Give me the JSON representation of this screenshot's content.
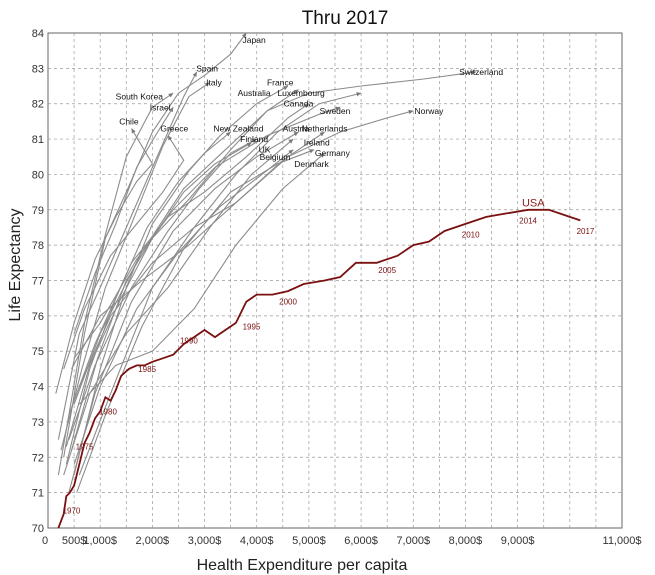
{
  "chart_data": {
    "type": "line",
    "title": "Thru 2017",
    "xlabel": "Health Expenditure per capita",
    "ylabel": "Life Expectancy",
    "xlim": [
      0,
      11000
    ],
    "ylim": [
      70,
      84
    ],
    "grid": true,
    "x_ticks": [
      {
        "value": 0,
        "label": "0"
      },
      {
        "value": 500,
        "label": "500$"
      },
      {
        "value": 1000,
        "label": "1,000$"
      },
      {
        "value": 2000,
        "label": "2,000$"
      },
      {
        "value": 3000,
        "label": "3,000$"
      },
      {
        "value": 4000,
        "label": "4,000$"
      },
      {
        "value": 5000,
        "label": "5,000$"
      },
      {
        "value": 6000,
        "label": "6,000$"
      },
      {
        "value": 7000,
        "label": "7,000$"
      },
      {
        "value": 8000,
        "label": "8,000$"
      },
      {
        "value": 9000,
        "label": "9,000$"
      },
      {
        "value": 11000,
        "label": "11,000$"
      }
    ],
    "y_ticks": [
      70,
      71,
      72,
      73,
      74,
      75,
      76,
      77,
      78,
      79,
      80,
      81,
      82,
      83,
      84
    ],
    "series": [
      {
        "name": "USA",
        "highlight": true,
        "color": "#7a1010",
        "points": [
          [
            200,
            70
          ],
          [
            300,
            70.4
          ],
          [
            350,
            70.9
          ],
          [
            420,
            71.0
          ],
          [
            500,
            71.2
          ],
          [
            600,
            71.8
          ],
          [
            700,
            72.4
          ],
          [
            800,
            72.7
          ],
          [
            900,
            73.1
          ],
          [
            1000,
            73.3
          ],
          [
            1100,
            73.7
          ],
          [
            1200,
            73.6
          ],
          [
            1300,
            73.9
          ],
          [
            1400,
            74.3
          ],
          [
            1550,
            74.5
          ],
          [
            1700,
            74.6
          ],
          [
            1850,
            74.6
          ],
          [
            2000,
            74.7
          ],
          [
            2200,
            74.8
          ],
          [
            2400,
            74.9
          ],
          [
            2600,
            75.2
          ],
          [
            2800,
            75.4
          ],
          [
            3000,
            75.6
          ],
          [
            3200,
            75.4
          ],
          [
            3400,
            75.6
          ],
          [
            3600,
            75.8
          ],
          [
            3800,
            76.4
          ],
          [
            4000,
            76.6
          ],
          [
            4300,
            76.6
          ],
          [
            4600,
            76.7
          ],
          [
            4900,
            76.9
          ],
          [
            5300,
            77.0
          ],
          [
            5600,
            77.1
          ],
          [
            5900,
            77.5
          ],
          [
            6300,
            77.5
          ],
          [
            6700,
            77.7
          ],
          [
            7000,
            78.0
          ],
          [
            7300,
            78.1
          ],
          [
            7600,
            78.4
          ],
          [
            8000,
            78.6
          ],
          [
            8400,
            78.8
          ],
          [
            8800,
            78.9
          ],
          [
            9200,
            79.0
          ],
          [
            9600,
            79.0
          ],
          [
            10000,
            78.8
          ],
          [
            10200,
            78.7
          ]
        ],
        "year_labels": [
          {
            "year": "1970",
            "x": 450,
            "y": 70.5
          },
          {
            "year": "1975",
            "x": 700,
            "y": 72.3
          },
          {
            "year": "1980",
            "x": 1150,
            "y": 73.3
          },
          {
            "year": "1985",
            "x": 1900,
            "y": 74.5
          },
          {
            "year": "1990",
            "x": 2700,
            "y": 75.3
          },
          {
            "year": "1995",
            "x": 3900,
            "y": 75.7
          },
          {
            "year": "2000",
            "x": 4600,
            "y": 76.4
          },
          {
            "year": "2005",
            "x": 6500,
            "y": 77.3
          },
          {
            "year": "2010",
            "x": 8100,
            "y": 78.3
          },
          {
            "year": "2014",
            "x": 9200,
            "y": 78.7
          },
          {
            "year": "2017",
            "x": 10300,
            "y": 78.4
          }
        ]
      },
      {
        "name": "Japan",
        "points": [
          [
            300,
            72
          ],
          [
            700,
            75.5
          ],
          [
            1100,
            78.2
          ],
          [
            1500,
            79.5
          ],
          [
            2000,
            81.2
          ],
          [
            2500,
            82.3
          ],
          [
            3000,
            82.8
          ],
          [
            3500,
            83.4
          ],
          [
            3800,
            84.0
          ]
        ],
        "label": {
          "x": 3950,
          "y": 83.8
        }
      },
      {
        "name": "Spain",
        "points": [
          [
            200,
            72.5
          ],
          [
            600,
            75.5
          ],
          [
            1000,
            76.8
          ],
          [
            1500,
            78.5
          ],
          [
            2000,
            80.2
          ],
          [
            2600,
            82.2
          ],
          [
            2850,
            82.9
          ]
        ],
        "label": {
          "x": 3050,
          "y": 83.0
        }
      },
      {
        "name": "Italy",
        "points": [
          [
            250,
            72.2
          ],
          [
            650,
            74.5
          ],
          [
            1100,
            76.8
          ],
          [
            1600,
            78.6
          ],
          [
            2200,
            80.8
          ],
          [
            2700,
            82.2
          ],
          [
            3100,
            82.6
          ]
        ],
        "label": {
          "x": 3180,
          "y": 82.6
        }
      },
      {
        "name": "South Korea",
        "points": [
          [
            200,
            71.5
          ],
          [
            400,
            73.2
          ],
          [
            700,
            75.8
          ],
          [
            1100,
            78.3
          ],
          [
            1500,
            80.5
          ],
          [
            2000,
            81.9
          ],
          [
            2400,
            82.3
          ]
        ],
        "label": {
          "x": 1750,
          "y": 82.2
        }
      },
      {
        "name": "Israel",
        "points": [
          [
            500,
            75.5
          ],
          [
            900,
            77.2
          ],
          [
            1300,
            78.6
          ],
          [
            1700,
            80.2
          ],
          [
            2100,
            81.2
          ],
          [
            2400,
            81.9
          ]
        ],
        "label": {
          "x": 2150,
          "y": 81.9
        }
      },
      {
        "name": "Chile",
        "points": [
          [
            150,
            73.8
          ],
          [
            500,
            75.8
          ],
          [
            900,
            77.6
          ],
          [
            1300,
            78.8
          ],
          [
            1700,
            79.8
          ],
          [
            2000,
            80.3
          ],
          [
            1600,
            81.3
          ]
        ],
        "label": {
          "x": 1550,
          "y": 81.5
        }
      },
      {
        "name": "Greece",
        "points": [
          [
            300,
            74.5
          ],
          [
            700,
            76.2
          ],
          [
            1200,
            77.7
          ],
          [
            1700,
            78.6
          ],
          [
            2200,
            79.5
          ],
          [
            2600,
            80.4
          ],
          [
            2300,
            81.1
          ]
        ],
        "label": {
          "x": 2420,
          "y": 81.3
        }
      },
      {
        "name": "Australia",
        "points": [
          [
            500,
            71.5
          ],
          [
            1000,
            74.5
          ],
          [
            1500,
            76.8
          ],
          [
            2000,
            78.6
          ],
          [
            2700,
            80.1
          ],
          [
            3300,
            81.1
          ],
          [
            4000,
            82.0
          ],
          [
            4600,
            82.5
          ]
        ],
        "label": {
          "x": 3950,
          "y": 82.3
        }
      },
      {
        "name": "France",
        "points": [
          [
            450,
            72.2
          ],
          [
            950,
            74.8
          ],
          [
            1500,
            77.0
          ],
          [
            2000,
            78.2
          ],
          [
            2700,
            79.3
          ],
          [
            3500,
            80.7
          ],
          [
            4200,
            81.8
          ],
          [
            4800,
            82.4
          ]
        ],
        "label": {
          "x": 4450,
          "y": 82.6
        }
      },
      {
        "name": "Luxembourg",
        "points": [
          [
            600,
            71.5
          ],
          [
            1200,
            73.8
          ],
          [
            2000,
            76.8
          ],
          [
            2800,
            78.5
          ],
          [
            3600,
            80.0
          ],
          [
            4400,
            81.2
          ],
          [
            5200,
            82.0
          ],
          [
            6000,
            82.3
          ]
        ],
        "label": {
          "x": 4850,
          "y": 82.3
        }
      },
      {
        "name": "Canada",
        "points": [
          [
            400,
            73.2
          ],
          [
            900,
            75.2
          ],
          [
            1600,
            77.5
          ],
          [
            2300,
            78.8
          ],
          [
            3000,
            79.5
          ],
          [
            3800,
            80.5
          ],
          [
            4600,
            81.6
          ],
          [
            5000,
            82.0
          ]
        ],
        "label": {
          "x": 4800,
          "y": 82.0
        }
      },
      {
        "name": "Sweden",
        "points": [
          [
            500,
            74.8
          ],
          [
            1000,
            75.8
          ],
          [
            1700,
            77.6
          ],
          [
            2400,
            79.0
          ],
          [
            3200,
            80.2
          ],
          [
            4200,
            81.1
          ],
          [
            5200,
            81.7
          ],
          [
            5600,
            81.9
          ]
        ],
        "label": {
          "x": 5500,
          "y": 81.8
        }
      },
      {
        "name": "Switzerland",
        "points": [
          [
            500,
            73.5
          ],
          [
            1000,
            75.5
          ],
          [
            1800,
            77.8
          ],
          [
            2600,
            79.6
          ],
          [
            3400,
            80.7
          ],
          [
            4200,
            81.8
          ],
          [
            5000,
            82.3
          ],
          [
            6000,
            82.5
          ],
          [
            7200,
            82.7
          ],
          [
            8200,
            82.9
          ]
        ],
        "label": {
          "x": 8300,
          "y": 82.9
        }
      },
      {
        "name": "Norway",
        "points": [
          [
            450,
            74.5
          ],
          [
            1000,
            76.0
          ],
          [
            1800,
            77.0
          ],
          [
            2700,
            78.0
          ],
          [
            3600,
            79.2
          ],
          [
            4600,
            80.5
          ],
          [
            5600,
            81.2
          ],
          [
            6500,
            81.6
          ],
          [
            7000,
            81.8
          ]
        ],
        "label": {
          "x": 7300,
          "y": 81.8
        }
      },
      {
        "name": "New Zealand",
        "points": [
          [
            350,
            71.8
          ],
          [
            800,
            74.5
          ],
          [
            1300,
            76.5
          ],
          [
            1900,
            78.5
          ],
          [
            2500,
            79.8
          ],
          [
            3000,
            80.6
          ],
          [
            3500,
            81.2
          ]
        ],
        "label": {
          "x": 3650,
          "y": 81.3
        }
      },
      {
        "name": "Finland",
        "points": [
          [
            400,
            72.5
          ],
          [
            900,
            74.6
          ],
          [
            1600,
            76.8
          ],
          [
            2300,
            78.4
          ],
          [
            2900,
            79.6
          ],
          [
            3500,
            80.6
          ],
          [
            4000,
            81.0
          ]
        ],
        "label": {
          "x": 3950,
          "y": 81.0
        }
      },
      {
        "name": "UK",
        "points": [
          [
            350,
            72.3
          ],
          [
            800,
            74.6
          ],
          [
            1400,
            76.5
          ],
          [
            2000,
            78.2
          ],
          [
            2600,
            79.5
          ],
          [
            3200,
            80.3
          ],
          [
            3900,
            80.9
          ]
        ],
        "label": {
          "x": 4150,
          "y": 80.7
        }
      },
      {
        "name": "Austria",
        "points": [
          [
            400,
            71.0
          ],
          [
            900,
            73.8
          ],
          [
            1600,
            76.4
          ],
          [
            2400,
            78.4
          ],
          [
            3200,
            79.6
          ],
          [
            4000,
            80.5
          ],
          [
            4800,
            81.2
          ]
        ],
        "label": {
          "x": 4750,
          "y": 81.3
        }
      },
      {
        "name": "Netherlands",
        "points": [
          [
            600,
            74.0
          ],
          [
            1200,
            76.0
          ],
          [
            2000,
            77.5
          ],
          [
            2800,
            78.5
          ],
          [
            3600,
            79.2
          ],
          [
            4500,
            80.4
          ],
          [
            5300,
            81.2
          ]
        ],
        "label": {
          "x": 5300,
          "y": 81.3
        }
      },
      {
        "name": "Ireland",
        "points": [
          [
            300,
            71.5
          ],
          [
            800,
            73.8
          ],
          [
            1500,
            75.5
          ],
          [
            2300,
            76.8
          ],
          [
            3100,
            78.5
          ],
          [
            3900,
            80.0
          ],
          [
            4700,
            81.0
          ]
        ],
        "label": {
          "x": 5150,
          "y": 80.9
        }
      },
      {
        "name": "Germany",
        "points": [
          [
            550,
            71.0
          ],
          [
            1100,
            73.2
          ],
          [
            1800,
            75.7
          ],
          [
            2600,
            77.9
          ],
          [
            3500,
            79.5
          ],
          [
            4400,
            80.3
          ],
          [
            5100,
            80.7
          ]
        ],
        "label": {
          "x": 5450,
          "y": 80.6
        }
      },
      {
        "name": "Belgium",
        "points": [
          [
            500,
            71.8
          ],
          [
            1000,
            74.0
          ],
          [
            1700,
            76.2
          ],
          [
            2500,
            77.8
          ],
          [
            3300,
            79.1
          ],
          [
            4100,
            80.0
          ],
          [
            4700,
            80.7
          ]
        ],
        "label": {
          "x": 4350,
          "y": 80.5
        }
      },
      {
        "name": "Denmark",
        "points": [
          [
            600,
            73.5
          ],
          [
            1300,
            74.6
          ],
          [
            2000,
            75.0
          ],
          [
            2800,
            76.2
          ],
          [
            3600,
            78.0
          ],
          [
            4500,
            79.6
          ],
          [
            5300,
            80.6
          ]
        ],
        "label": {
          "x": 5050,
          "y": 80.3
        }
      }
    ]
  }
}
